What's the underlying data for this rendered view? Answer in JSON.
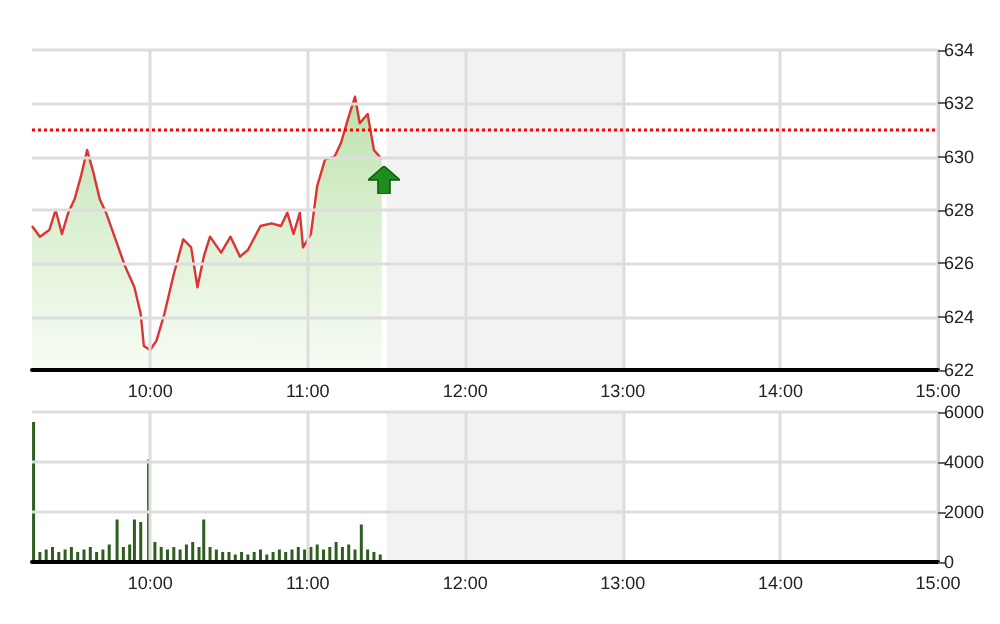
{
  "chart_data": [
    {
      "type": "area",
      "xlim": [
        9.25,
        15
      ],
      "xticks": [
        {
          "value": 10,
          "label": "10:00"
        },
        {
          "value": 11,
          "label": "11:00"
        },
        {
          "value": 12,
          "label": "12:00"
        },
        {
          "value": 13,
          "label": "13:00"
        },
        {
          "value": 14,
          "label": "14:00"
        },
        {
          "value": 15,
          "label": "15:00"
        }
      ],
      "ylim": [
        622,
        634
      ],
      "yticks": [
        622,
        624,
        626,
        628,
        630,
        632,
        634
      ],
      "grid": true,
      "marker": "none",
      "line_style": "solid",
      "series": [
        {
          "color": "#dd3333",
          "x": [
            9.25,
            9.3,
            9.36,
            9.4,
            9.44,
            9.48,
            9.52,
            9.56,
            9.6,
            9.64,
            9.68,
            9.72,
            9.78,
            9.84,
            9.9,
            9.94,
            9.96,
            10.0,
            10.04,
            10.09,
            10.15,
            10.21,
            10.26,
            10.3,
            10.34,
            10.38,
            10.45,
            10.51,
            10.57,
            10.62,
            10.7,
            10.77,
            10.83,
            10.87,
            10.91,
            10.95,
            10.97,
            11.02,
            11.06,
            11.11,
            11.17,
            11.21,
            11.26,
            11.3,
            11.33,
            11.38,
            11.42,
            11.47
          ],
          "values": [
            627.4,
            627.0,
            627.25,
            628.0,
            627.1,
            627.9,
            628.4,
            629.25,
            630.25,
            629.4,
            628.4,
            627.9,
            626.9,
            625.9,
            625.1,
            624.1,
            622.9,
            622.75,
            623.1,
            624.1,
            625.6,
            626.9,
            626.6,
            625.1,
            626.25,
            627.0,
            626.4,
            627.0,
            626.25,
            626.5,
            627.4,
            627.5,
            627.4,
            627.9,
            627.1,
            627.9,
            626.6,
            627.1,
            628.9,
            629.9,
            630.0,
            630.5,
            631.5,
            632.25,
            631.25,
            631.6,
            630.25,
            629.9
          ]
        }
      ],
      "ref_lines": [
        {
          "axis": "y",
          "value": 631,
          "color": "#ff0000",
          "line_style": "dotted"
        }
      ],
      "bands": [
        {
          "axis": "x",
          "from": 11.5,
          "to": 13,
          "color": "#f2f2f2"
        }
      ]
    },
    {
      "type": "bar",
      "xlim": [
        9.25,
        15
      ],
      "xticks": [
        {
          "value": 10,
          "label": "10:00"
        },
        {
          "value": 11,
          "label": "11:00"
        },
        {
          "value": 12,
          "label": "12:00"
        },
        {
          "value": 13,
          "label": "13:00"
        },
        {
          "value": 14,
          "label": "14:00"
        },
        {
          "value": 15,
          "label": "15:00"
        }
      ],
      "ylim": [
        0,
        6000
      ],
      "yticks": [
        0,
        2000,
        4000,
        6000
      ],
      "grid": true,
      "series": [
        {
          "color": "#2d5e1e",
          "x": [
            9.26,
            9.3,
            9.34,
            9.38,
            9.42,
            9.46,
            9.5,
            9.54,
            9.58,
            9.62,
            9.66,
            9.7,
            9.74,
            9.79,
            9.83,
            9.87,
            9.9,
            9.94,
            9.99,
            10.03,
            10.07,
            10.11,
            10.15,
            10.19,
            10.23,
            10.27,
            10.31,
            10.34,
            10.38,
            10.42,
            10.46,
            10.5,
            10.54,
            10.58,
            10.62,
            10.66,
            10.7,
            10.74,
            10.78,
            10.82,
            10.86,
            10.9,
            10.94,
            10.98,
            11.02,
            11.06,
            11.1,
            11.14,
            11.18,
            11.22,
            11.26,
            11.3,
            11.34,
            11.38,
            11.42,
            11.46
          ],
          "values": [
            5600,
            400,
            500,
            600,
            400,
            500,
            600,
            400,
            500,
            600,
            400,
            500,
            700,
            1700,
            600,
            700,
            1700,
            1600,
            4100,
            800,
            600,
            500,
            600,
            500,
            700,
            800,
            600,
            1700,
            600,
            500,
            400,
            400,
            300,
            400,
            300,
            400,
            500,
            300,
            400,
            500,
            400,
            500,
            600,
            500,
            600,
            700,
            500,
            600,
            800,
            600,
            700,
            500,
            1500,
            500,
            400,
            300
          ]
        }
      ],
      "bands": [
        {
          "axis": "x",
          "from": 11.5,
          "to": 13,
          "color": "#f2f2f2"
        }
      ]
    }
  ]
}
